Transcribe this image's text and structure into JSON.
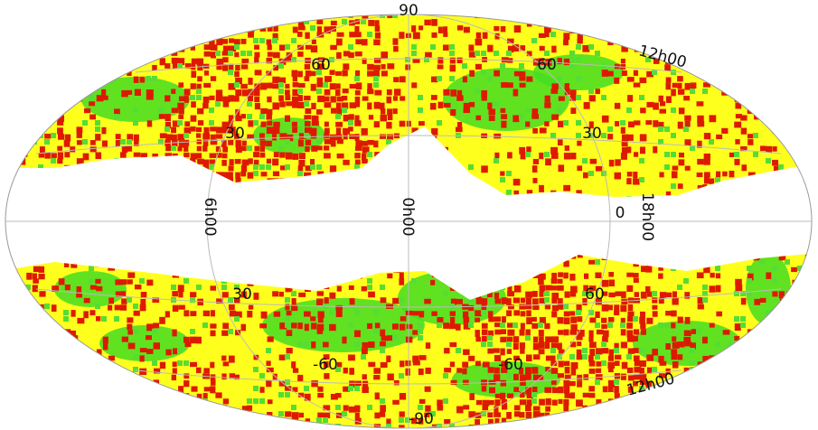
{
  "grid_labels": [
    "90",
    "12h00",
    "60",
    "60",
    "30",
    "30",
    "6h00",
    "0h00",
    "0",
    "18h00",
    "30",
    "60",
    "-60",
    "-60",
    "12h00",
    "-90"
  ]
}
